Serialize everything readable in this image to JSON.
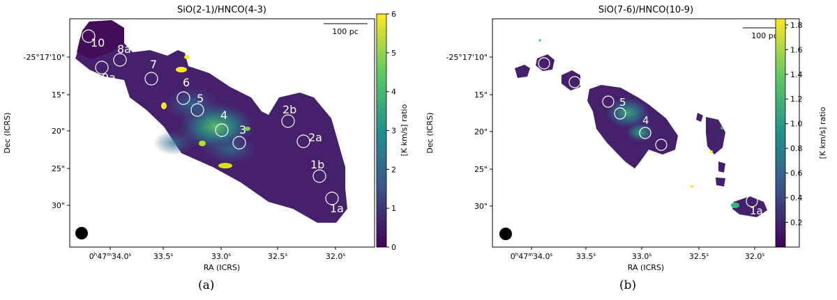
{
  "chart_data": [
    {
      "type": "heatmap",
      "panel": "a",
      "title": "SiO(2-1)/HNCO(4-3)",
      "xlabel": "RA (ICRS)",
      "ylabel": "Dec (ICRS)",
      "colorbar_label": "[K km/s] ratio",
      "colorbar_ticks": [
        "0",
        "1",
        "2",
        "3",
        "4",
        "5",
        "6"
      ],
      "colorbar_range": [
        0,
        6
      ],
      "x_ticks": [
        "0h47m34.0s",
        "33.5s",
        "33.0s",
        "32.5s",
        "32.0s"
      ],
      "x_tick_parts": [
        {
          "main": "0",
          "sup1": "h",
          "mid": "47",
          "sup2": "m",
          "sec": "34.0",
          "sup3": "s"
        },
        {
          "main": "",
          "sup1": "",
          "mid": "",
          "sup2": "",
          "sec": "33.5",
          "sup3": "s"
        },
        {
          "main": "",
          "sup1": "",
          "mid": "",
          "sup2": "",
          "sec": "33.0",
          "sup3": "s"
        },
        {
          "main": "",
          "sup1": "",
          "mid": "",
          "sup2": "",
          "sec": "32.5",
          "sup3": "s"
        },
        {
          "main": "",
          "sup1": "",
          "mid": "",
          "sup2": "",
          "sec": "32.0",
          "sup3": "s"
        }
      ],
      "y_ticks": [
        "-25°17'10\"",
        "15\"",
        "20\"",
        "25\"",
        "30\""
      ],
      "scale_bar_label": "100 pc",
      "region_labels": [
        "10",
        "8a",
        "9a",
        "7",
        "6",
        "5",
        "4",
        "3",
        "2b",
        "2a",
        "1b",
        "1a"
      ],
      "caption": "(a)"
    },
    {
      "type": "heatmap",
      "panel": "b",
      "title": "SiO(7-6)/HNCO(10-9)",
      "xlabel": "RA (ICRS)",
      "ylabel": "Dec (ICRS)",
      "colorbar_label": "[K km/s] ratio",
      "colorbar_ticks": [
        "0.2",
        "0.4",
        "0.6",
        "0.8",
        "1.0",
        "1.2",
        "1.4",
        "1.6",
        "1.8"
      ],
      "colorbar_range": [
        0.0,
        1.85
      ],
      "x_ticks": [
        "0h47m34.0s",
        "33.5s",
        "33.0s",
        "32.5s",
        "32.0s"
      ],
      "x_tick_parts": [
        {
          "main": "0",
          "sup1": "h",
          "mid": "47",
          "sup2": "m",
          "sec": "34.0",
          "sup3": "s"
        },
        {
          "main": "",
          "sup1": "",
          "mid": "",
          "sup2": "",
          "sec": "33.5",
          "sup3": "s"
        },
        {
          "main": "",
          "sup1": "",
          "mid": "",
          "sup2": "",
          "sec": "33.0",
          "sup3": "s"
        },
        {
          "main": "",
          "sup1": "",
          "mid": "",
          "sup2": "",
          "sec": "32.5",
          "sup3": "s"
        },
        {
          "main": "",
          "sup1": "",
          "mid": "",
          "sup2": "",
          "sec": "32.0",
          "sup3": "s"
        }
      ],
      "y_ticks": [
        "-25°17'10\"",
        "15\"",
        "20\"",
        "25\"",
        "30\""
      ],
      "scale_bar_label": "100 pc",
      "region_labels": [
        "5",
        "4",
        "1a"
      ],
      "caption": "(b)"
    }
  ],
  "colors": {
    "map_dark": "#440d5a",
    "map_mid": "#3b528b",
    "map_teal": "#21918c",
    "map_green": "#5ec962",
    "map_yellow": "#fde725",
    "circle": "#ffffff",
    "beam": "#000000"
  }
}
